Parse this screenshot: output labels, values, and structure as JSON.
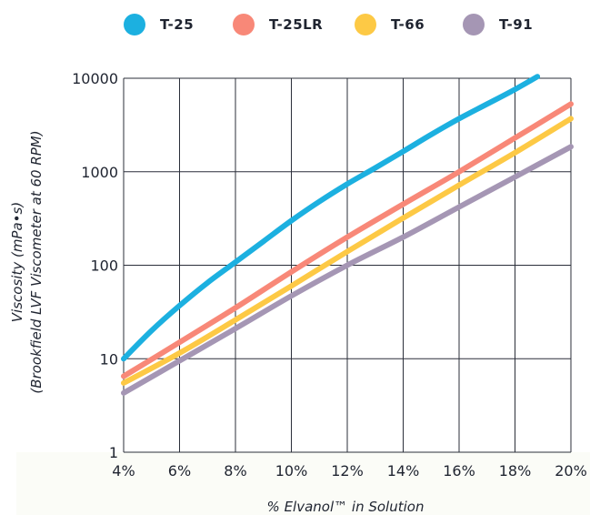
{
  "chart_data": {
    "type": "line",
    "title": "",
    "xlabel": "% Elvanol™ in Solution",
    "ylabel_line1": "Viscosity (mPa•s)",
    "ylabel_line2": "(Brookfield LVF Viscometer at 60 RPM)",
    "x_ticks": [
      "4%",
      "6%",
      "8%",
      "10%",
      "12%",
      "14%",
      "16%",
      "18%",
      "20%"
    ],
    "y_ticks": [
      "1",
      "10",
      "100",
      "1000",
      "10000"
    ],
    "xlim": [
      4,
      20
    ],
    "ylim": [
      1,
      10000
    ],
    "y_scale": "log",
    "grid": true,
    "legend_position": "top",
    "series": [
      {
        "name": "T-25",
        "color": "#1cb0e0",
        "x": [
          4,
          5,
          6,
          7,
          8,
          9,
          10,
          11,
          12,
          13,
          14,
          15,
          16,
          17,
          18,
          18.8
        ],
        "y": [
          10,
          20,
          37,
          65,
          108,
          180,
          300,
          480,
          740,
          1100,
          1650,
          2500,
          3700,
          5300,
          7600,
          10400
        ]
      },
      {
        "name": "T-25LR",
        "color": "#f88878",
        "x": [
          4,
          6,
          8,
          10,
          12,
          14,
          16,
          18,
          20
        ],
        "y": [
          6.5,
          15,
          35,
          85,
          200,
          450,
          1000,
          2300,
          5300
        ]
      },
      {
        "name": "T-66",
        "color": "#fdc945",
        "x": [
          4,
          6,
          8,
          10,
          12,
          14,
          16,
          18,
          20
        ],
        "y": [
          5.5,
          11.5,
          26,
          60,
          140,
          320,
          720,
          1600,
          3700
        ]
      },
      {
        "name": "T-91",
        "color": "#a596b4",
        "x": [
          4,
          6,
          8,
          10,
          12,
          14,
          16,
          18,
          20
        ],
        "y": [
          4.3,
          9.5,
          21,
          47,
          100,
          200,
          420,
          880,
          1850
        ]
      }
    ]
  }
}
